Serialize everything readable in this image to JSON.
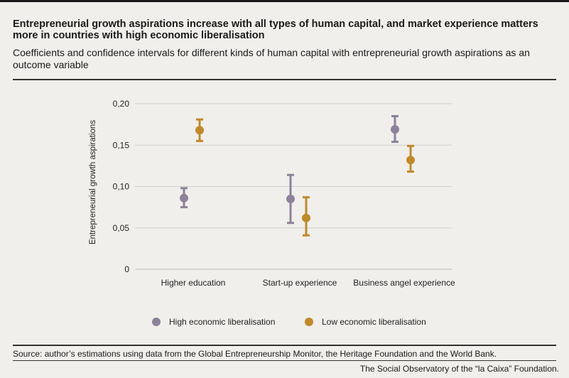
{
  "header": {
    "title": "Entrepreneurial growth aspirations increase with all types of human capital, and market experience matters more in countries with high economic liberalisation",
    "subtitle": "Coefficients and confidence intervals for different kinds of human capital with entrepreneurial growth aspirations as an outcome variable"
  },
  "footer": {
    "source": "Source: author’s estimations using data from the Global Entrepreneurship Monitor, the Heritage Foundation and the World Bank.",
    "credit": "The Social Observatory of the “la Caixa” Foundation."
  },
  "colors": {
    "high": "#8d8299",
    "low": "#c08a2a",
    "grid": "#cfcfcf",
    "background": "#f0efec"
  },
  "chart_data": {
    "type": "scatter",
    "ylabel": "Entrepreneurial growth aspirations",
    "xlabel": "",
    "ylim": [
      0,
      0.2
    ],
    "yticks": [
      {
        "value": 0,
        "label": "0"
      },
      {
        "value": 0.05,
        "label": "0,05"
      },
      {
        "value": 0.1,
        "label": "0,10"
      },
      {
        "value": 0.15,
        "label": "0,15"
      },
      {
        "value": 0.2,
        "label": "0,20"
      }
    ],
    "grid": true,
    "legend_position": "bottom",
    "categories": [
      "Higher education",
      "Start-up experience",
      "Business angel experience"
    ],
    "series": [
      {
        "name": "High economic liberalisation",
        "color": "#8d8299",
        "values": [
          0.086,
          0.085,
          0.169
        ],
        "lower": [
          0.075,
          0.056,
          0.154
        ],
        "upper": [
          0.098,
          0.114,
          0.185
        ]
      },
      {
        "name": "Low economic liberalisation",
        "color": "#c08a2a",
        "values": [
          0.168,
          0.062,
          0.132
        ],
        "lower": [
          0.155,
          0.041,
          0.118
        ],
        "upper": [
          0.181,
          0.087,
          0.149
        ]
      }
    ]
  }
}
